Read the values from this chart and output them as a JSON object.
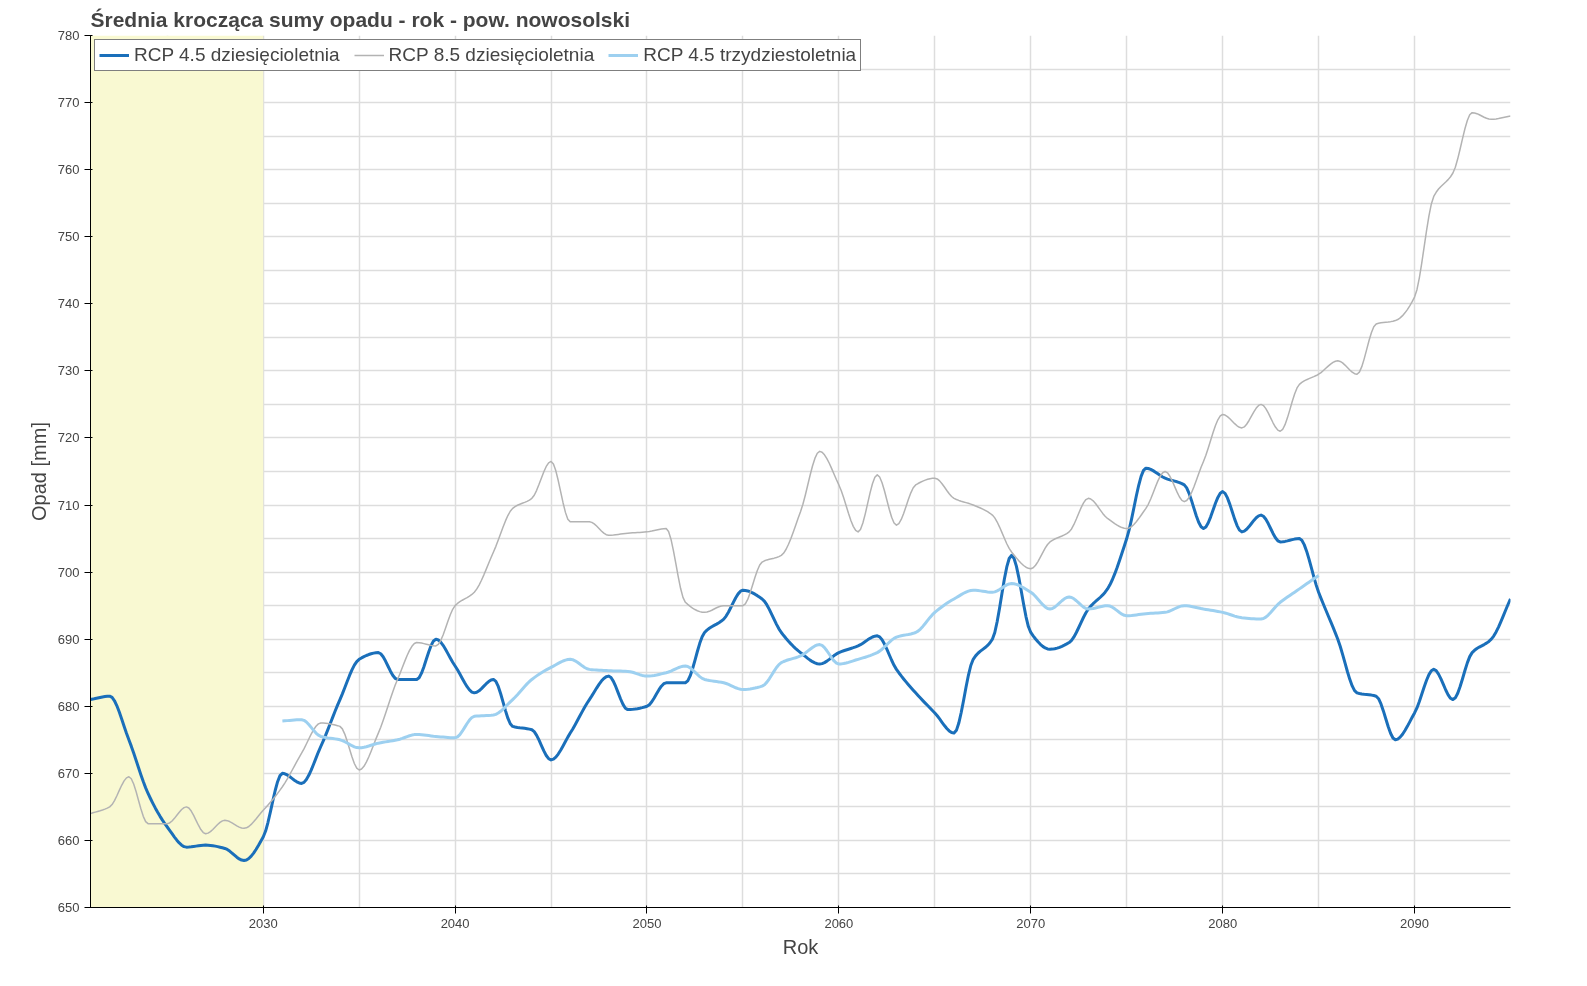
{
  "chart_data": {
    "type": "line",
    "title": "Średnia krocząca sumy opadu - rok - pow. nowosolski",
    "xlabel": "Rok",
    "ylabel": "Opad [mm]",
    "x": [
      2021,
      2022,
      2023,
      2024,
      2025,
      2026,
      2027,
      2028,
      2029,
      2030,
      2031,
      2032,
      2033,
      2034,
      2035,
      2036,
      2037,
      2038,
      2039,
      2040,
      2041,
      2042,
      2043,
      2044,
      2045,
      2046,
      2047,
      2048,
      2049,
      2050,
      2051,
      2052,
      2053,
      2054,
      2055,
      2056,
      2057,
      2058,
      2059,
      2060,
      2061,
      2062,
      2063,
      2064,
      2065,
      2066,
      2067,
      2068,
      2069,
      2070,
      2071,
      2072,
      2073,
      2074,
      2075,
      2076,
      2077,
      2078,
      2079,
      2080,
      2081,
      2082,
      2083,
      2084,
      2085,
      2086,
      2087,
      2088,
      2089,
      2090,
      2091,
      2092,
      2093,
      2094,
      2095
    ],
    "series": [
      {
        "name": "RCP 4.5 dziesięcioletnia",
        "color": "#1a6fba",
        "values": [
          681,
          681.5,
          675,
          667,
          662,
          659,
          659.3,
          658.8,
          657,
          660.5,
          670,
          668.5,
          674,
          681,
          687,
          688,
          684,
          684,
          690,
          686,
          682,
          684,
          677,
          676.5,
          672,
          676,
          681,
          684.5,
          679.5,
          680,
          683.5,
          683.5,
          691,
          693,
          697.3,
          696,
          691,
          688,
          686.3,
          688,
          689,
          690.5,
          685.5,
          682,
          679,
          676,
          687,
          690,
          702.5,
          691,
          688.5,
          689.5,
          694.5,
          697.5,
          705,
          715.5,
          714,
          713,
          706.5,
          712,
          706,
          708.5,
          704.5,
          705,
          697,
          690,
          682,
          681.5,
          675,
          679,
          685.5,
          681,
          688,
          690,
          696
        ]
      },
      {
        "name": "RCP 8.5 dziesięcioletnia",
        "color": "#b3b3b3",
        "values": [
          664,
          665,
          669.5,
          662.5,
          662.5,
          665,
          661,
          663,
          661.8,
          664.5,
          668,
          673,
          677.5,
          677,
          670.5,
          676,
          684,
          689.5,
          689,
          695,
          697,
          703,
          709.5,
          711,
          716.5,
          707.5,
          707.5,
          705.5,
          705.8,
          706,
          706.5,
          695.5,
          694,
          695,
          695,
          701.5,
          702.5,
          709,
          718,
          713,
          706,
          714.5,
          707,
          713,
          714,
          711,
          710,
          708.5,
          703,
          700.5,
          704.5,
          706,
          711,
          708,
          706.5,
          709.5,
          715,
          710.5,
          716.5,
          723.5,
          721.5,
          725,
          721,
          728,
          729.5,
          731.5,
          729.5,
          737,
          737.5,
          741,
          756,
          759.5,
          768.5,
          767.5,
          768
        ]
      },
      {
        "name": "RCP 4.5 trzydziestoletnia",
        "color": "#9dd0f0",
        "values": [
          null,
          null,
          null,
          null,
          null,
          null,
          null,
          null,
          null,
          null,
          677.8,
          678,
          675.5,
          675,
          673.8,
          674.5,
          675,
          675.8,
          675.5,
          675.3,
          678.5,
          678.7,
          681,
          684,
          685.8,
          687,
          685.5,
          685.3,
          685.2,
          684.5,
          685,
          686,
          684,
          683.5,
          682.5,
          683,
          686.5,
          687.5,
          689.2,
          686.3,
          687,
          688,
          690.3,
          691,
          694,
          696,
          697.3,
          697,
          698.3,
          697,
          694.5,
          696.3,
          694.5,
          695,
          693.5,
          693.8,
          694,
          695,
          694.5,
          694,
          693.2,
          693,
          695.5,
          697.5,
          699.5,
          null,
          null,
          null,
          null,
          null,
          null,
          null,
          null,
          null,
          null
        ]
      }
    ],
    "xlim": [
      2021,
      2095
    ],
    "xticks": [
      2030,
      2040,
      2050,
      2060,
      2070,
      2080,
      2090
    ],
    "ylim": [
      650,
      780
    ],
    "yticks": [
      650,
      660,
      670,
      680,
      690,
      700,
      710,
      720,
      730,
      740,
      750,
      760,
      770,
      780
    ],
    "bands": [
      {
        "axis": "x",
        "from": 2021,
        "to": 2030,
        "color": "#f9f9d2"
      }
    ],
    "grid": true,
    "legend": "top left"
  }
}
